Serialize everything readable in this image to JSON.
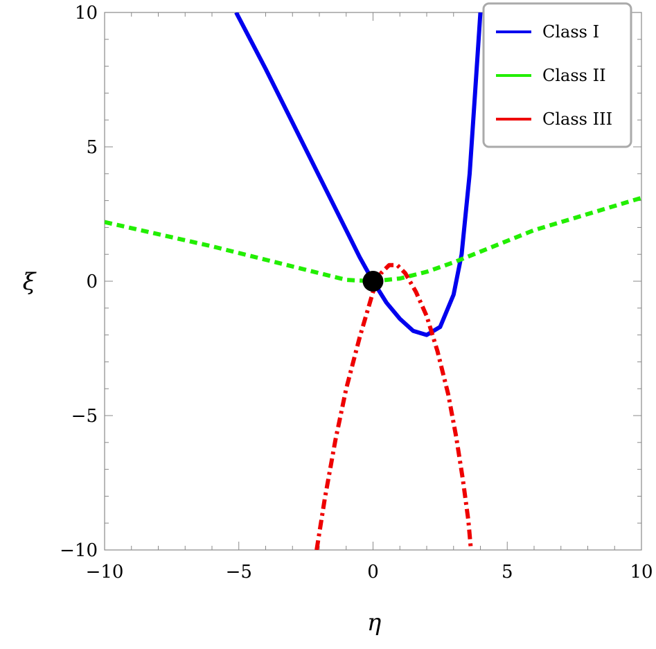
{
  "chart_data": {
    "type": "line",
    "title": "",
    "xlabel": "η",
    "ylabel": "ξ",
    "xlim": [
      -10,
      10
    ],
    "ylim": [
      -10,
      10
    ],
    "xticks": [
      -10,
      -5,
      0,
      5,
      10
    ],
    "yticks": [
      -10,
      -5,
      0,
      5,
      10
    ],
    "xtick_labels": [
      "−10",
      "−5",
      "0",
      "5",
      "10"
    ],
    "ytick_labels": [
      "−10",
      "−5",
      "0",
      "5",
      "10"
    ],
    "grid": false,
    "legend_position": "top-right",
    "series": [
      {
        "name": "Class I",
        "color": "#0000ee",
        "style": "solid",
        "x": [
          -5.1,
          -4,
          -3,
          -2,
          -1,
          -0.5,
          0,
          0.5,
          1,
          1.5,
          2,
          2.5,
          3,
          3.3,
          3.6,
          3.8,
          4.0
        ],
        "y": [
          10,
          7.9,
          5.9,
          3.9,
          1.9,
          0.9,
          0,
          -0.8,
          -1.4,
          -1.85,
          -2.0,
          -1.7,
          -0.5,
          1.0,
          4.0,
          7.0,
          10
        ]
      },
      {
        "name": "Class II",
        "color": "#22ee00",
        "style": "dashed",
        "x": [
          -10,
          -8,
          -6,
          -4,
          -2,
          -1,
          0,
          1,
          2,
          3,
          4,
          6,
          8,
          10
        ],
        "y": [
          2.2,
          1.75,
          1.3,
          0.8,
          0.3,
          0.05,
          0,
          0.1,
          0.35,
          0.7,
          1.1,
          1.9,
          2.5,
          3.1
        ]
      },
      {
        "name": "Class III",
        "color": "#ee0000",
        "style": "dashdot",
        "x": [
          -2.1,
          -1.8,
          -1.4,
          -1.0,
          -0.5,
          0,
          0.3,
          0.6,
          0.9,
          1.2,
          1.6,
          2.0,
          2.4,
          2.8,
          3.1,
          3.35,
          3.55,
          3.65
        ],
        "y": [
          -10,
          -8.1,
          -5.9,
          -4.0,
          -2.1,
          -0.4,
          0.3,
          0.6,
          0.6,
          0.3,
          -0.4,
          -1.3,
          -2.6,
          -4.2,
          -5.8,
          -7.4,
          -8.9,
          -10
        ]
      }
    ],
    "points": [
      {
        "x": 0,
        "y": 0,
        "color": "#000000"
      }
    ]
  }
}
